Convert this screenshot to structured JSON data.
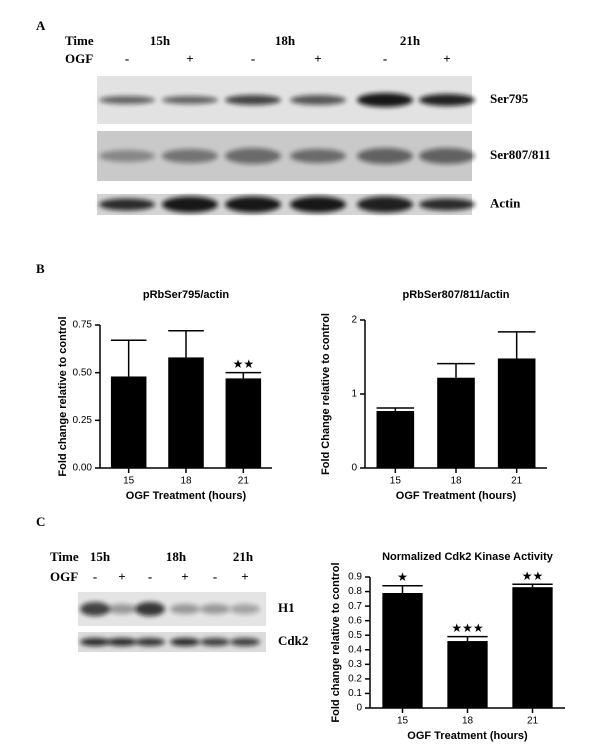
{
  "panel_labels": [
    "A",
    "B",
    "C"
  ],
  "blot_a": {
    "time_label": "Time",
    "ogf_label": "OGF",
    "times": [
      "15h",
      "18h",
      "21h"
    ],
    "ogf": [
      "-",
      "+",
      "-",
      "+",
      "-",
      "+"
    ],
    "bands": [
      "Ser795",
      "Ser807/811",
      "Actin"
    ]
  },
  "blot_c": {
    "time_label": "Time",
    "ogf_label": "OGF",
    "times": [
      "15h",
      "18h",
      "21h"
    ],
    "ogf": [
      "-",
      "+",
      "-",
      "+",
      "-",
      "+"
    ],
    "bands": [
      "H1",
      "Cdk2"
    ]
  },
  "chart_data": [
    {
      "type": "bar",
      "title": "pRbSer795/actin",
      "x_label": "OGF Treatment (hours)",
      "y_label": "Fold change relative to control",
      "categories": [
        "15",
        "18",
        "21"
      ],
      "values": [
        0.48,
        0.58,
        0.47
      ],
      "errors": [
        0.19,
        0.14,
        0.03
      ],
      "color": "#000000",
      "ylim": [
        0,
        0.75
      ],
      "yticks": [
        {
          "value": 0,
          "label": "0.00"
        },
        {
          "value": 0.25,
          "label": "0.25"
        },
        {
          "value": 0.5,
          "label": "0.50"
        },
        {
          "value": 0.75,
          "label": "0.75"
        }
      ],
      "annotations": [
        {
          "category": "21",
          "text": "★★"
        }
      ]
    },
    {
      "type": "bar",
      "title": "pRbSer807/811/actin",
      "x_label": "OGF Treatment (hours)",
      "y_label": "Fold Change relative to control",
      "categories": [
        "15",
        "18",
        "21"
      ],
      "values": [
        0.77,
        1.22,
        1.48
      ],
      "errors": [
        0.04,
        0.19,
        0.36
      ],
      "color": "#000000",
      "ylim": [
        0,
        2
      ],
      "yticks": [
        0,
        1,
        2
      ]
    },
    {
      "type": "bar",
      "title": "Normalized Cdk2 Kinase Activity",
      "x_label": "OGF Treatment (hours)",
      "y_label": "Fold change relative to control",
      "categories": [
        "15",
        "18",
        "21"
      ],
      "values": [
        0.79,
        0.46,
        0.83
      ],
      "errors": [
        0.05,
        0.03,
        0.02
      ],
      "color": "#000000",
      "ylim": [
        0,
        0.9
      ],
      "yticks": [
        0,
        0.1,
        0.2,
        0.3,
        0.4,
        0.5,
        0.6,
        0.7,
        0.8,
        0.9
      ],
      "annotations": [
        {
          "category": "15",
          "text": "★"
        },
        {
          "category": "18",
          "text": "★★★"
        },
        {
          "category": "21",
          "text": "★★"
        }
      ]
    }
  ]
}
